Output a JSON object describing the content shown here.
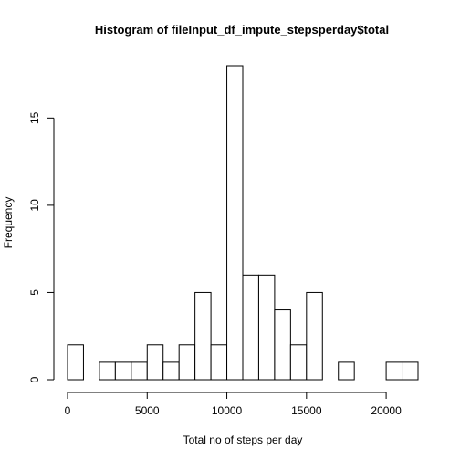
{
  "chart_data": {
    "type": "bar",
    "title": "Histogram of fileInput_df_impute_stepsperday$total",
    "xlabel": "Total no of steps per day",
    "ylabel": "Frequency",
    "bin_width": 1000,
    "bins": [
      {
        "start": 0,
        "end": 1000,
        "count": 2
      },
      {
        "start": 1000,
        "end": 2000,
        "count": 0
      },
      {
        "start": 2000,
        "end": 3000,
        "count": 1
      },
      {
        "start": 3000,
        "end": 4000,
        "count": 1
      },
      {
        "start": 4000,
        "end": 5000,
        "count": 1
      },
      {
        "start": 5000,
        "end": 6000,
        "count": 2
      },
      {
        "start": 6000,
        "end": 7000,
        "count": 1
      },
      {
        "start": 7000,
        "end": 8000,
        "count": 2
      },
      {
        "start": 8000,
        "end": 9000,
        "count": 5
      },
      {
        "start": 9000,
        "end": 10000,
        "count": 2
      },
      {
        "start": 10000,
        "end": 11000,
        "count": 18
      },
      {
        "start": 11000,
        "end": 12000,
        "count": 6
      },
      {
        "start": 12000,
        "end": 13000,
        "count": 6
      },
      {
        "start": 13000,
        "end": 14000,
        "count": 4
      },
      {
        "start": 14000,
        "end": 15000,
        "count": 2
      },
      {
        "start": 15000,
        "end": 16000,
        "count": 5
      },
      {
        "start": 16000,
        "end": 17000,
        "count": 0
      },
      {
        "start": 17000,
        "end": 18000,
        "count": 1
      },
      {
        "start": 18000,
        "end": 19000,
        "count": 0
      },
      {
        "start": 19000,
        "end": 20000,
        "count": 0
      },
      {
        "start": 20000,
        "end": 21000,
        "count": 1
      },
      {
        "start": 21000,
        "end": 22000,
        "count": 1
      }
    ],
    "xlim": [
      0,
      22000
    ],
    "ylim": [
      0,
      18
    ],
    "x_ticks": [
      {
        "value": 0,
        "label": "0"
      },
      {
        "value": 5000,
        "label": "5000"
      },
      {
        "value": 10000,
        "label": "10000"
      },
      {
        "value": 15000,
        "label": "15000"
      },
      {
        "value": 20000,
        "label": "20000"
      }
    ],
    "y_ticks": [
      {
        "value": 0,
        "label": "0"
      },
      {
        "value": 5,
        "label": "5"
      },
      {
        "value": 10,
        "label": "10"
      },
      {
        "value": 15,
        "label": "15"
      }
    ],
    "grid": false,
    "legend": "none",
    "bar_fill": "#ffffff",
    "bar_stroke": "#000000"
  }
}
